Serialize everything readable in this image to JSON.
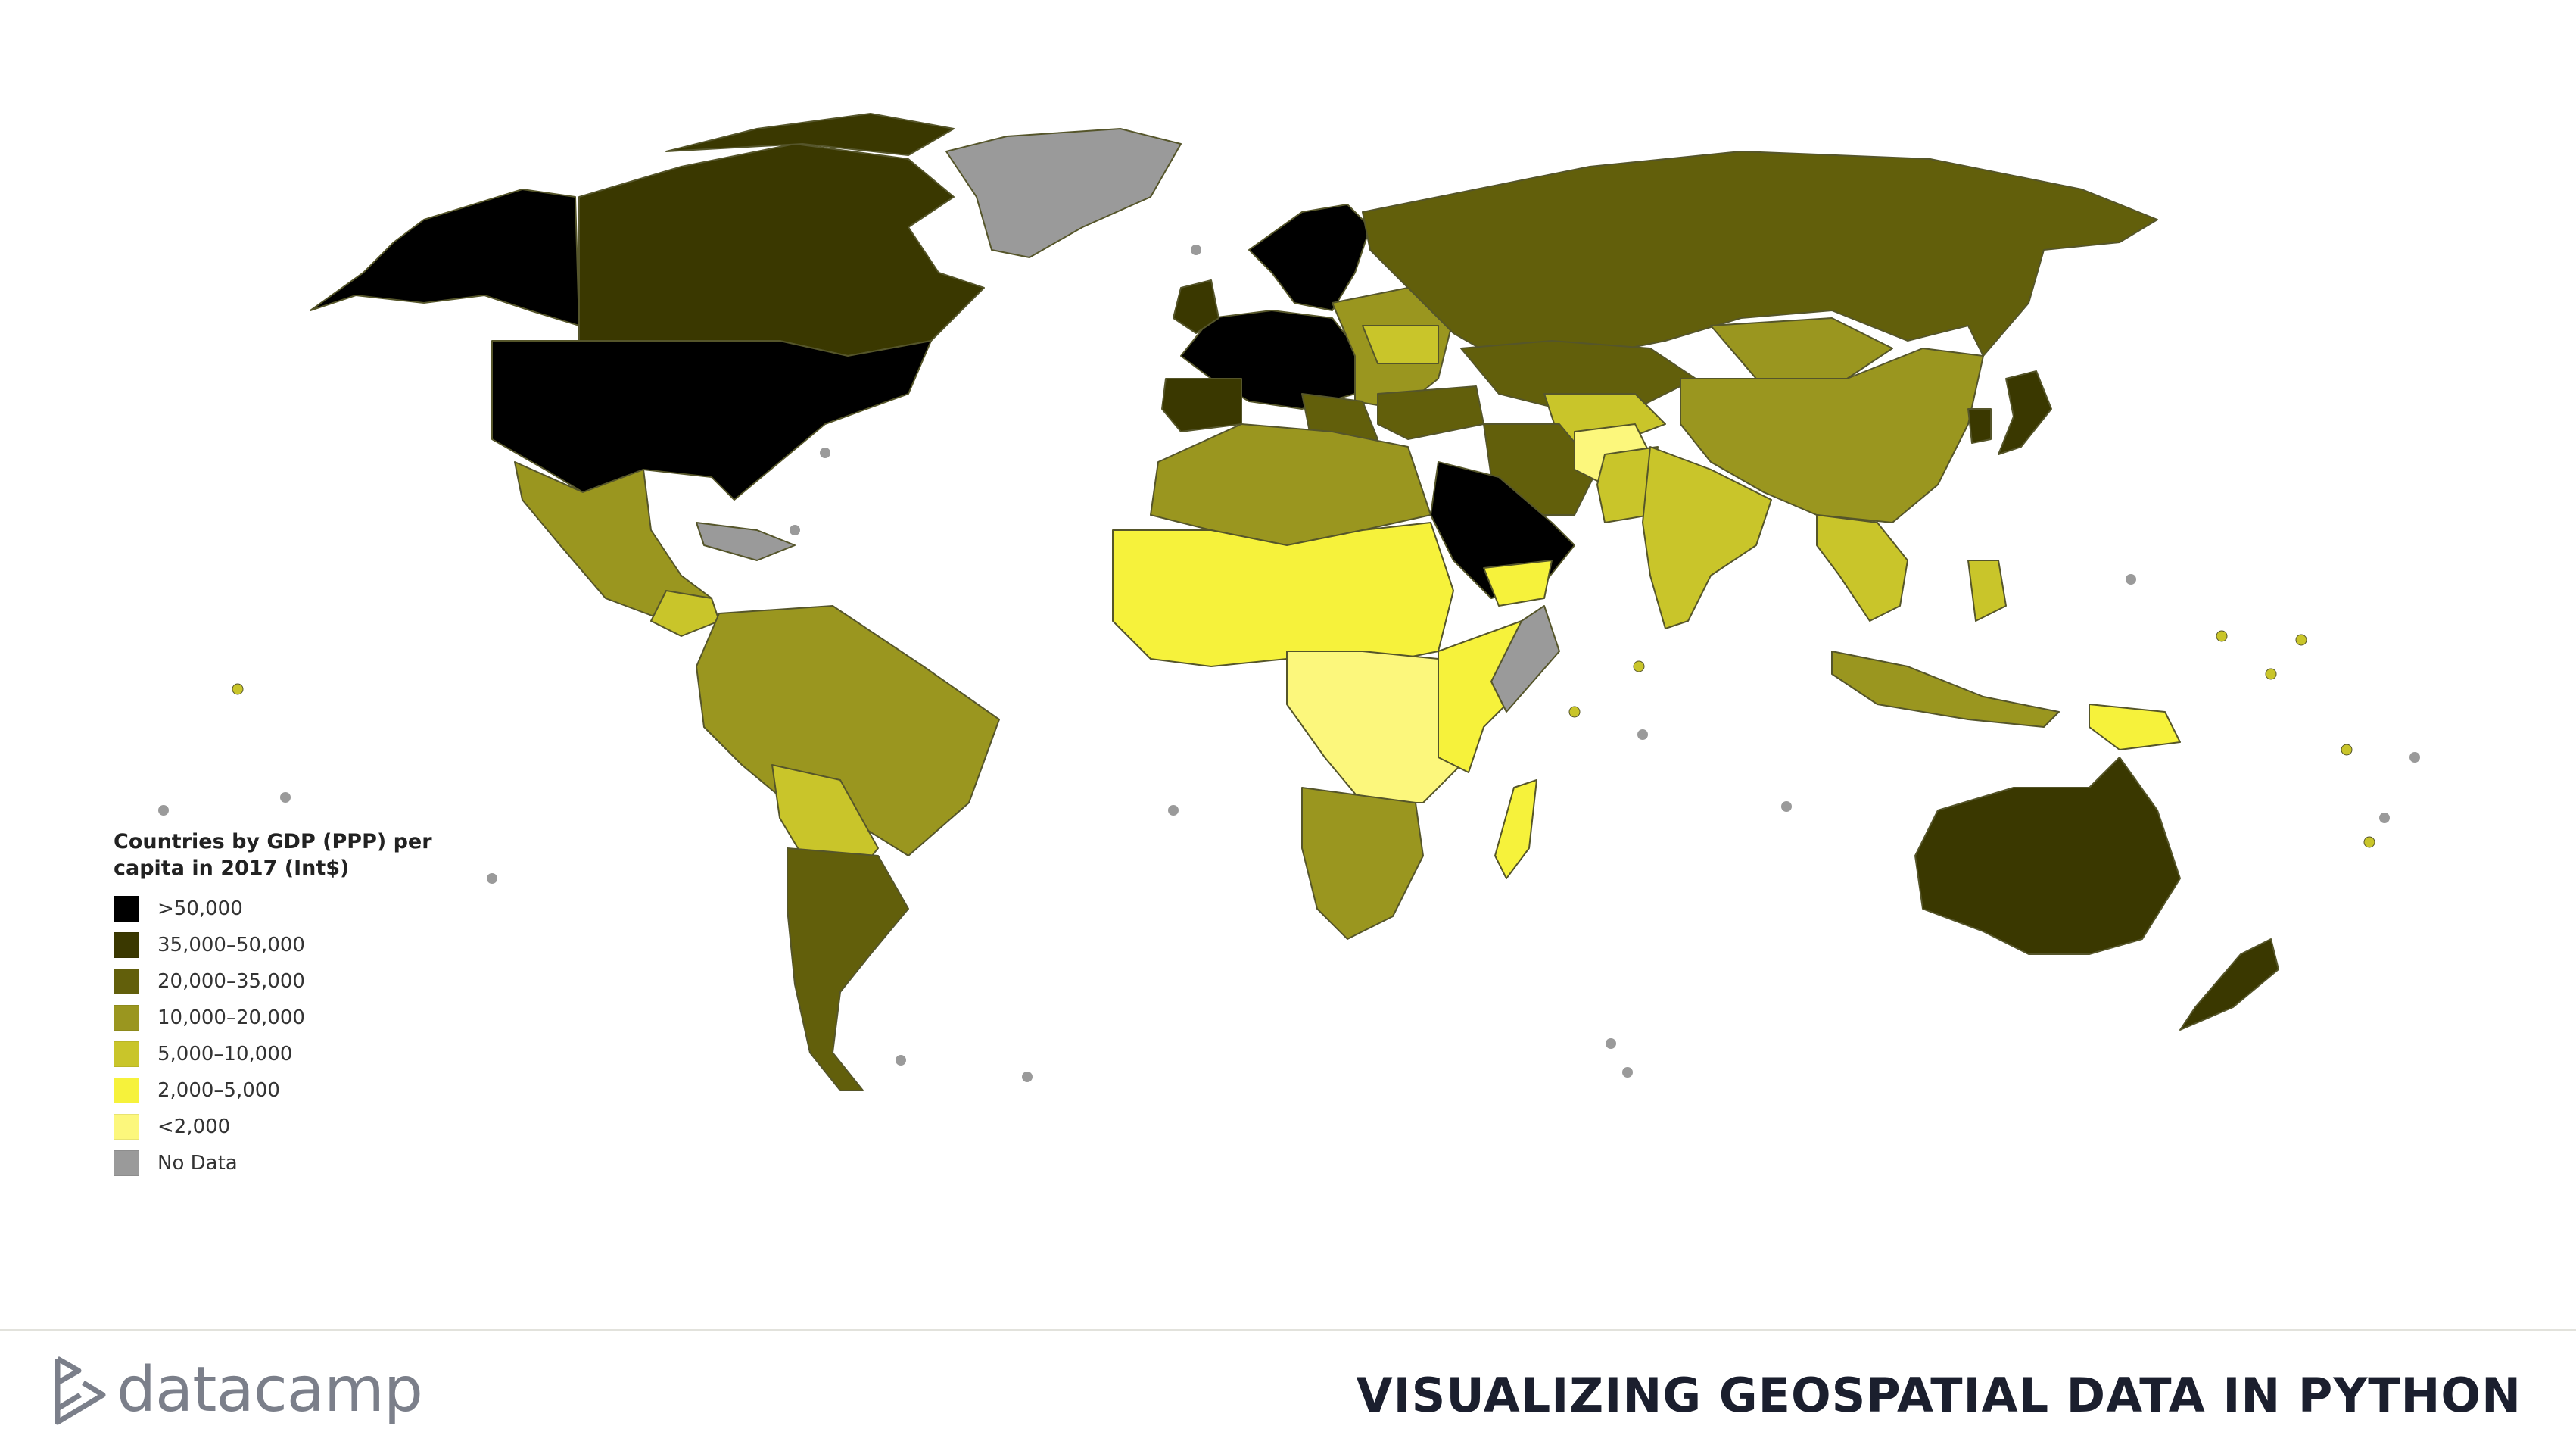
{
  "legend": {
    "title": "Countries by GDP (PPP) per\ncapita in 2017 (Int$)",
    "items": [
      {
        "label": ">50,000",
        "color": "#000000"
      },
      {
        "label": "35,000–50,000",
        "color": "#3a3800"
      },
      {
        "label": "20,000–35,000",
        "color": "#625f0b"
      },
      {
        "label": "10,000–20,000",
        "color": "#9a961f"
      },
      {
        "label": "5,000–10,000",
        "color": "#c9c52a"
      },
      {
        "label": "2,000–5,000",
        "color": "#f6f23b"
      },
      {
        "label": "<2,000",
        "color": "#fcf77c"
      },
      {
        "label": "No Data",
        "color": "#9a9a9a"
      }
    ]
  },
  "footer": {
    "brand": "datacamp",
    "course_title": "VISUALIZING GEOSPATIAL DATA IN PYTHON"
  }
}
